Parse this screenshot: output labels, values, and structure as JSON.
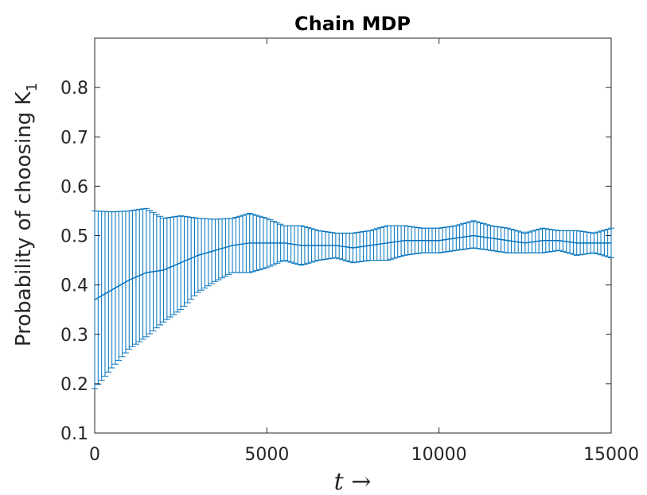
{
  "chart_data": {
    "type": "line",
    "title": "Chain MDP",
    "xlabel": "t →",
    "ylabel_main": "Probability of choosing K",
    "ylabel_sub": "1",
    "xlim": [
      0,
      15000
    ],
    "ylim": [
      0.1,
      0.9
    ],
    "xticks": [
      0,
      5000,
      10000,
      15000
    ],
    "yticks": [
      0.1,
      0.2,
      0.3,
      0.4,
      0.5,
      0.6,
      0.7,
      0.8
    ],
    "ytick_labels": [
      "0.1",
      "0.2",
      "0.3",
      "0.4",
      "0.5",
      "0.6",
      "0.7",
      "0.8"
    ],
    "xtick_labels": [
      "0",
      "5000",
      "10000",
      "15000"
    ],
    "grid": false,
    "color": "#0072BD",
    "series": [
      {
        "x": [
          0,
          500,
          1000,
          1500,
          2000,
          2500,
          3000,
          3500,
          4000,
          4500,
          5000,
          5500,
          6000,
          6500,
          7000,
          7500,
          8000,
          8500,
          9000,
          9500,
          10000,
          10500,
          11000,
          11500,
          12000,
          12500,
          13000,
          13500,
          14000,
          14500,
          15000
        ],
        "y": [
          0.37,
          0.39,
          0.41,
          0.425,
          0.43,
          0.445,
          0.46,
          0.47,
          0.48,
          0.485,
          0.485,
          0.485,
          0.48,
          0.48,
          0.48,
          0.475,
          0.48,
          0.485,
          0.49,
          0.49,
          0.49,
          0.495,
          0.5,
          0.495,
          0.49,
          0.485,
          0.49,
          0.49,
          0.485,
          0.485,
          0.485
        ],
        "upper": [
          0.55,
          0.548,
          0.55,
          0.555,
          0.535,
          0.54,
          0.535,
          0.533,
          0.535,
          0.545,
          0.535,
          0.52,
          0.52,
          0.51,
          0.505,
          0.505,
          0.51,
          0.52,
          0.52,
          0.515,
          0.515,
          0.52,
          0.53,
          0.52,
          0.515,
          0.505,
          0.515,
          0.51,
          0.51,
          0.505,
          0.515
        ],
        "lower": [
          0.19,
          0.232,
          0.27,
          0.295,
          0.325,
          0.35,
          0.385,
          0.407,
          0.425,
          0.425,
          0.435,
          0.45,
          0.44,
          0.45,
          0.455,
          0.445,
          0.45,
          0.45,
          0.46,
          0.465,
          0.465,
          0.47,
          0.475,
          0.47,
          0.465,
          0.465,
          0.465,
          0.47,
          0.46,
          0.465,
          0.455
        ]
      }
    ]
  }
}
